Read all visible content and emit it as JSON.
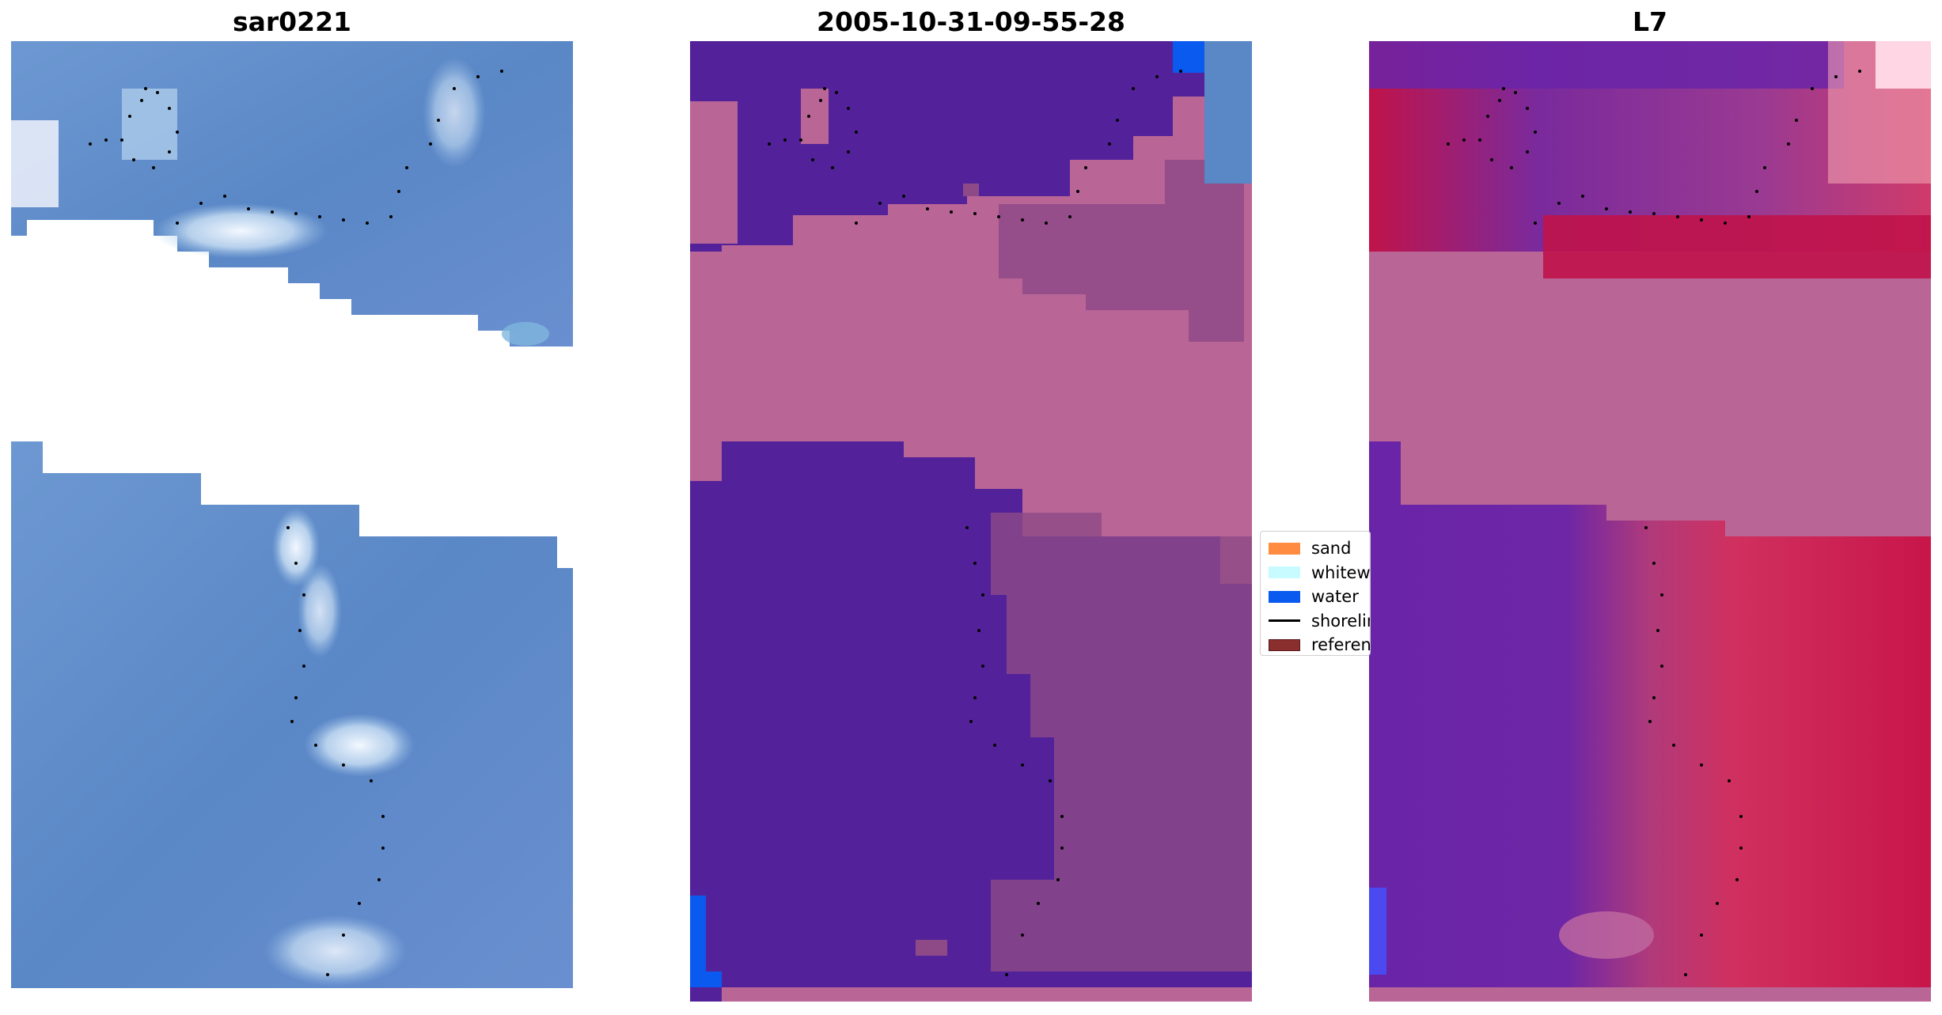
{
  "panels": [
    {
      "title": "sar0221"
    },
    {
      "title": "2005-10-31-09-55-28"
    },
    {
      "title": "L7"
    }
  ],
  "legend": [
    {
      "label": "sand",
      "color": "#ff8c40",
      "kind": "patch"
    },
    {
      "label": "whitewater",
      "color": "#c8fbff",
      "kind": "patch"
    },
    {
      "label": "water",
      "color": "#0a5af0",
      "kind": "patch"
    },
    {
      "label": "shoreline",
      "color": "#000000",
      "kind": "line"
    },
    {
      "label": "reference shoreline",
      "color": "#8b2e2e",
      "kind": "patch"
    }
  ],
  "colors": {
    "classified_water": "#53229a",
    "classified_land": "#b96596",
    "sar_water": "#5a87c6",
    "l7_land": "#c0134a"
  }
}
